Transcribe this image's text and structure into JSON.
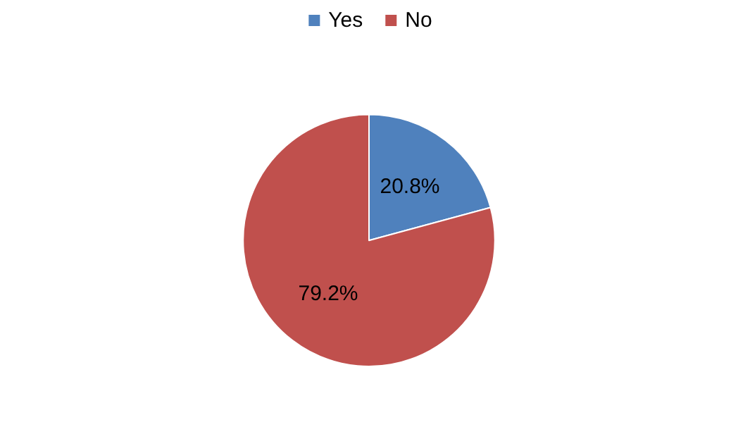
{
  "chart_data": {
    "type": "pie",
    "categories": [
      "Yes",
      "No"
    ],
    "values": [
      20.8,
      79.2
    ],
    "colors": [
      "#4f81bd",
      "#c0504d"
    ],
    "value_labels": [
      "20.8%",
      "79.2%"
    ],
    "legend": "top"
  }
}
